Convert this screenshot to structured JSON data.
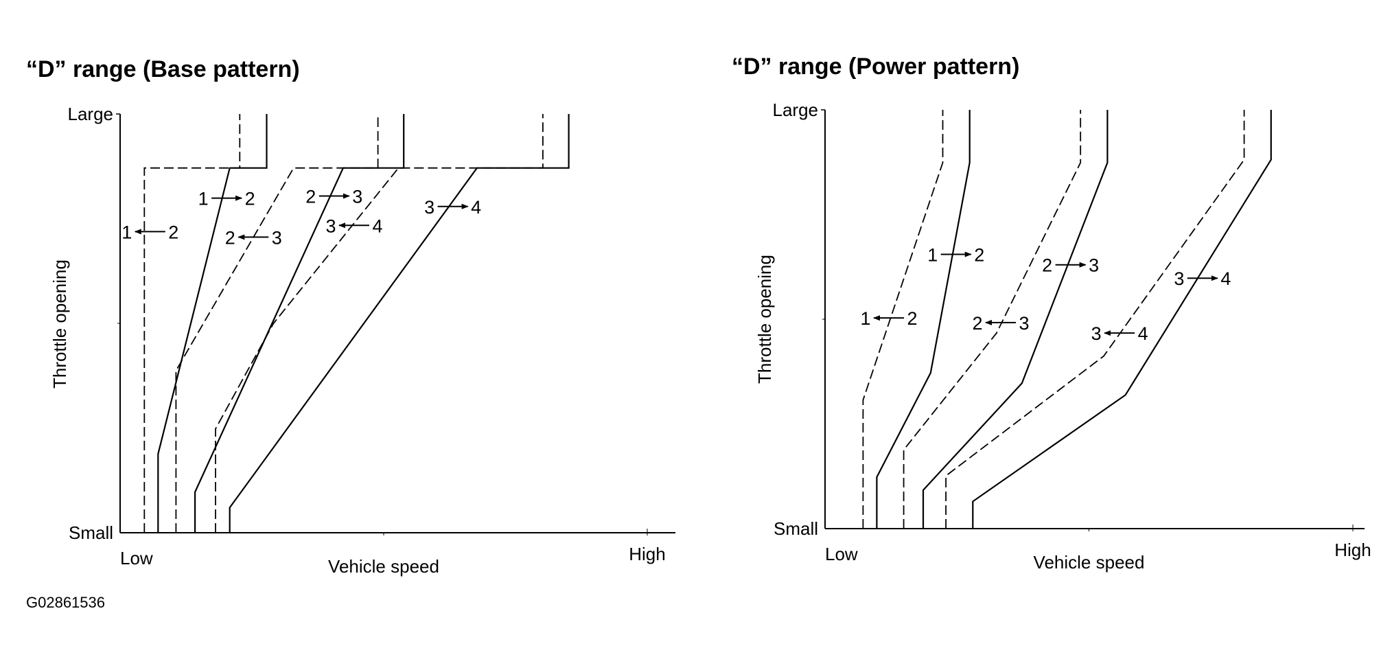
{
  "figure_code": "G02861536",
  "colors": {
    "line": "#000000",
    "background": "#ffffff"
  },
  "chart_data": [
    {
      "type": "line",
      "title": "“D” range (Base pattern)",
      "xlabel": "Vehicle speed",
      "ylabel": "Throttle opening",
      "x_ticks": {
        "low": "Low",
        "high": "High"
      },
      "y_ticks": {
        "low": "Small",
        "high": "Large"
      },
      "xlim": [
        0,
        100
      ],
      "ylim": [
        0,
        100
      ],
      "series": [
        {
          "name": "1←2",
          "style": "dashed",
          "points": [
            [
              4.6,
              0
            ],
            [
              4.6,
              87.1
            ],
            [
              22.7,
              87.1
            ],
            [
              22.7,
              100
            ]
          ]
        },
        {
          "name": "1→2",
          "style": "solid",
          "points": [
            [
              7.2,
              0
            ],
            [
              7.2,
              18.8
            ],
            [
              20.8,
              87.1
            ],
            [
              27.8,
              87.1
            ],
            [
              27.8,
              100
            ]
          ]
        },
        {
          "name": "2←3",
          "style": "dashed",
          "points": [
            [
              10.6,
              0
            ],
            [
              10.6,
              38.7
            ],
            [
              32.9,
              87.1
            ],
            [
              48.9,
              87.1
            ],
            [
              48.9,
              100
            ]
          ]
        },
        {
          "name": "2→3",
          "style": "solid",
          "points": [
            [
              14.2,
              0
            ],
            [
              14.2,
              9.7
            ],
            [
              42.3,
              87.1
            ],
            [
              53.8,
              87.1
            ],
            [
              53.8,
              100
            ]
          ]
        },
        {
          "name": "3←4",
          "style": "dashed",
          "points": [
            [
              18.1,
              0
            ],
            [
              18.1,
              24.8
            ],
            [
              29.1,
              50
            ],
            [
              52.8,
              87.1
            ],
            [
              80.2,
              87.1
            ],
            [
              80.2,
              100
            ]
          ]
        },
        {
          "name": "3→4",
          "style": "solid",
          "points": [
            [
              20.8,
              0
            ],
            [
              20.8,
              6.0
            ],
            [
              67.7,
              87.1
            ],
            [
              85.1,
              87.1
            ],
            [
              85.1,
              100
            ]
          ]
        }
      ],
      "annotations": [
        {
          "from": "1",
          "to": "2",
          "dir": "left",
          "x": 5.7,
          "y": 71.9
        },
        {
          "from": "1",
          "to": "2",
          "dir": "right",
          "x": 20.2,
          "y": 79.9
        },
        {
          "from": "2",
          "to": "3",
          "dir": "right",
          "x": 40.6,
          "y": 80.4
        },
        {
          "from": "2",
          "to": "3",
          "dir": "left",
          "x": 25.3,
          "y": 70.6
        },
        {
          "from": "3",
          "to": "4",
          "dir": "left",
          "x": 44.4,
          "y": 73.4
        },
        {
          "from": "3",
          "to": "4",
          "dir": "right",
          "x": 63.1,
          "y": 77.9
        }
      ]
    },
    {
      "type": "line",
      "title": "“D” range (Power pattern)",
      "xlabel": "Vehicle speed",
      "ylabel": "Throttle opening",
      "x_ticks": {
        "low": "Low",
        "high": "High"
      },
      "y_ticks": {
        "low": "Small",
        "high": "Large"
      },
      "xlim": [
        0,
        100
      ],
      "ylim": [
        0,
        100
      ],
      "series": [
        {
          "name": "1←2",
          "style": "dashed",
          "points": [
            [
              7.2,
              0
            ],
            [
              7.2,
              30.7
            ],
            [
              22.3,
              87.4
            ],
            [
              22.3,
              100
            ]
          ]
        },
        {
          "name": "1→2",
          "style": "solid",
          "points": [
            [
              9.8,
              0
            ],
            [
              9.8,
              12.3
            ],
            [
              20.0,
              37.2
            ],
            [
              27.4,
              87.4
            ],
            [
              27.4,
              100
            ]
          ]
        },
        {
          "name": "2←3",
          "style": "dashed",
          "points": [
            [
              14.9,
              0
            ],
            [
              14.9,
              18.8
            ],
            [
              32.5,
              46.7
            ],
            [
              48.4,
              87.4
            ],
            [
              48.4,
              100
            ]
          ]
        },
        {
          "name": "2→3",
          "style": "solid",
          "points": [
            [
              18.6,
              0
            ],
            [
              18.6,
              9.2
            ],
            [
              37.3,
              34.7
            ],
            [
              53.5,
              87.4
            ],
            [
              53.5,
              100
            ]
          ]
        },
        {
          "name": "3←4",
          "style": "dashed",
          "points": [
            [
              22.9,
              0
            ],
            [
              22.9,
              12.6
            ],
            [
              52.8,
              41.2
            ],
            [
              79.4,
              88.1
            ],
            [
              79.4,
              100
            ]
          ]
        },
        {
          "name": "3→4",
          "style": "solid",
          "points": [
            [
              28.0,
              0
            ],
            [
              28.0,
              6.5
            ],
            [
              56.9,
              31.9
            ],
            [
              84.5,
              88.1
            ],
            [
              84.5,
              100
            ]
          ]
        }
      ],
      "annotations": [
        {
          "from": "1",
          "to": "2",
          "dir": "right",
          "x": 24.8,
          "y": 65.5
        },
        {
          "from": "2",
          "to": "3",
          "dir": "right",
          "x": 46.5,
          "y": 63.0
        },
        {
          "from": "3",
          "to": "4",
          "dir": "right",
          "x": 71.5,
          "y": 59.8
        },
        {
          "from": "1",
          "to": "2",
          "dir": "left",
          "x": 12.1,
          "y": 50.3
        },
        {
          "from": "2",
          "to": "3",
          "dir": "left",
          "x": 33.3,
          "y": 49.2
        },
        {
          "from": "3",
          "to": "4",
          "dir": "left",
          "x": 55.8,
          "y": 46.7
        }
      ]
    }
  ]
}
